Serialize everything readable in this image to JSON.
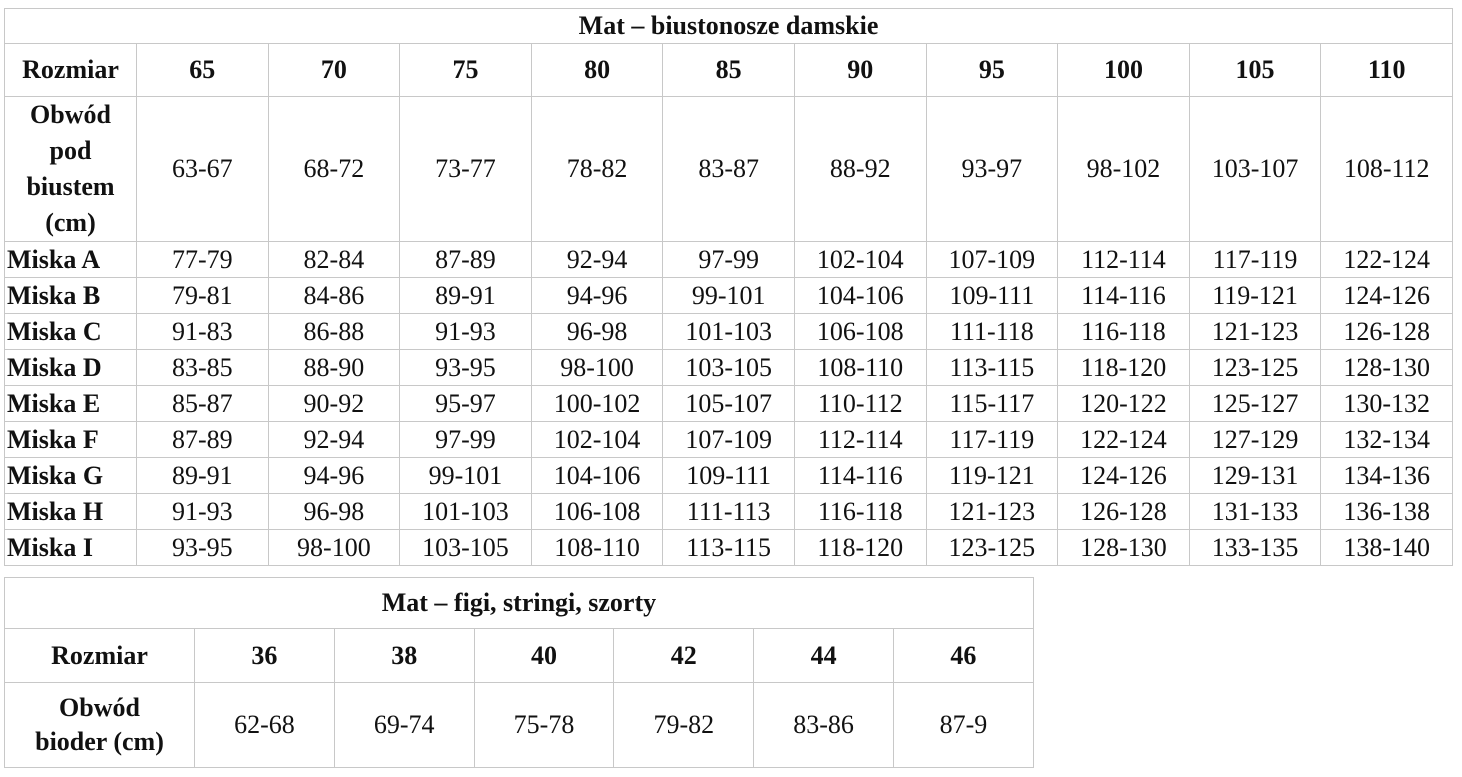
{
  "bra_table": {
    "title": "Mat – biustonosze damskie",
    "header_label": "Rozmiar",
    "sizes": [
      "65",
      "70",
      "75",
      "80",
      "85",
      "90",
      "95",
      "100",
      "105",
      "110"
    ],
    "underbust_label": [
      "Obwód",
      "pod",
      "biustem",
      "(cm)"
    ],
    "underbust": [
      "63-67",
      "68-72",
      "73-77",
      "78-82",
      "83-87",
      "88-92",
      "93-97",
      "98-102",
      "103-107",
      "108-112"
    ],
    "cups": [
      {
        "label": "Miska A",
        "values": [
          "77-79",
          "82-84",
          "87-89",
          "92-94",
          "97-99",
          "102-104",
          "107-109",
          "112-114",
          "117-119",
          "122-124"
        ]
      },
      {
        "label": "Miska B",
        "values": [
          "79-81",
          "84-86",
          "89-91",
          "94-96",
          "99-101",
          "104-106",
          "109-111",
          "114-116",
          "119-121",
          "124-126"
        ]
      },
      {
        "label": "Miska C",
        "values": [
          "91-83",
          "86-88",
          "91-93",
          "96-98",
          "101-103",
          "106-108",
          "111-118",
          "116-118",
          "121-123",
          "126-128"
        ]
      },
      {
        "label": "Miska D",
        "values": [
          "83-85",
          "88-90",
          "93-95",
          "98-100",
          "103-105",
          "108-110",
          "113-115",
          "118-120",
          "123-125",
          "128-130"
        ]
      },
      {
        "label": "Miska E",
        "values": [
          "85-87",
          "90-92",
          "95-97",
          "100-102",
          "105-107",
          "110-112",
          "115-117",
          "120-122",
          "125-127",
          "130-132"
        ]
      },
      {
        "label": "Miska F",
        "values": [
          "87-89",
          "92-94",
          "97-99",
          "102-104",
          "107-109",
          "112-114",
          "117-119",
          "122-124",
          "127-129",
          "132-134"
        ]
      },
      {
        "label": "Miska G",
        "values": [
          "89-91",
          "94-96",
          "99-101",
          "104-106",
          "109-111",
          "114-116",
          "119-121",
          "124-126",
          "129-131",
          "134-136"
        ]
      },
      {
        "label": "Miska H",
        "values": [
          "91-93",
          "96-98",
          "101-103",
          "106-108",
          "111-113",
          "116-118",
          "121-123",
          "126-128",
          "131-133",
          "136-138"
        ]
      },
      {
        "label": "Miska I",
        "values": [
          "93-95",
          "98-100",
          "103-105",
          "108-110",
          "113-115",
          "118-120",
          "123-125",
          "128-130",
          "133-135",
          "138-140"
        ]
      }
    ]
  },
  "briefs_table": {
    "title": "Mat – figi, stringi, szorty",
    "header_label": "Rozmiar",
    "sizes": [
      "36",
      "38",
      "40",
      "42",
      "44",
      "46"
    ],
    "hip_label": [
      "Obwód",
      "bioder (cm)"
    ],
    "hips": [
      "62-68",
      "69-74",
      "75-78",
      "79-82",
      "83-86",
      "87-9"
    ]
  }
}
